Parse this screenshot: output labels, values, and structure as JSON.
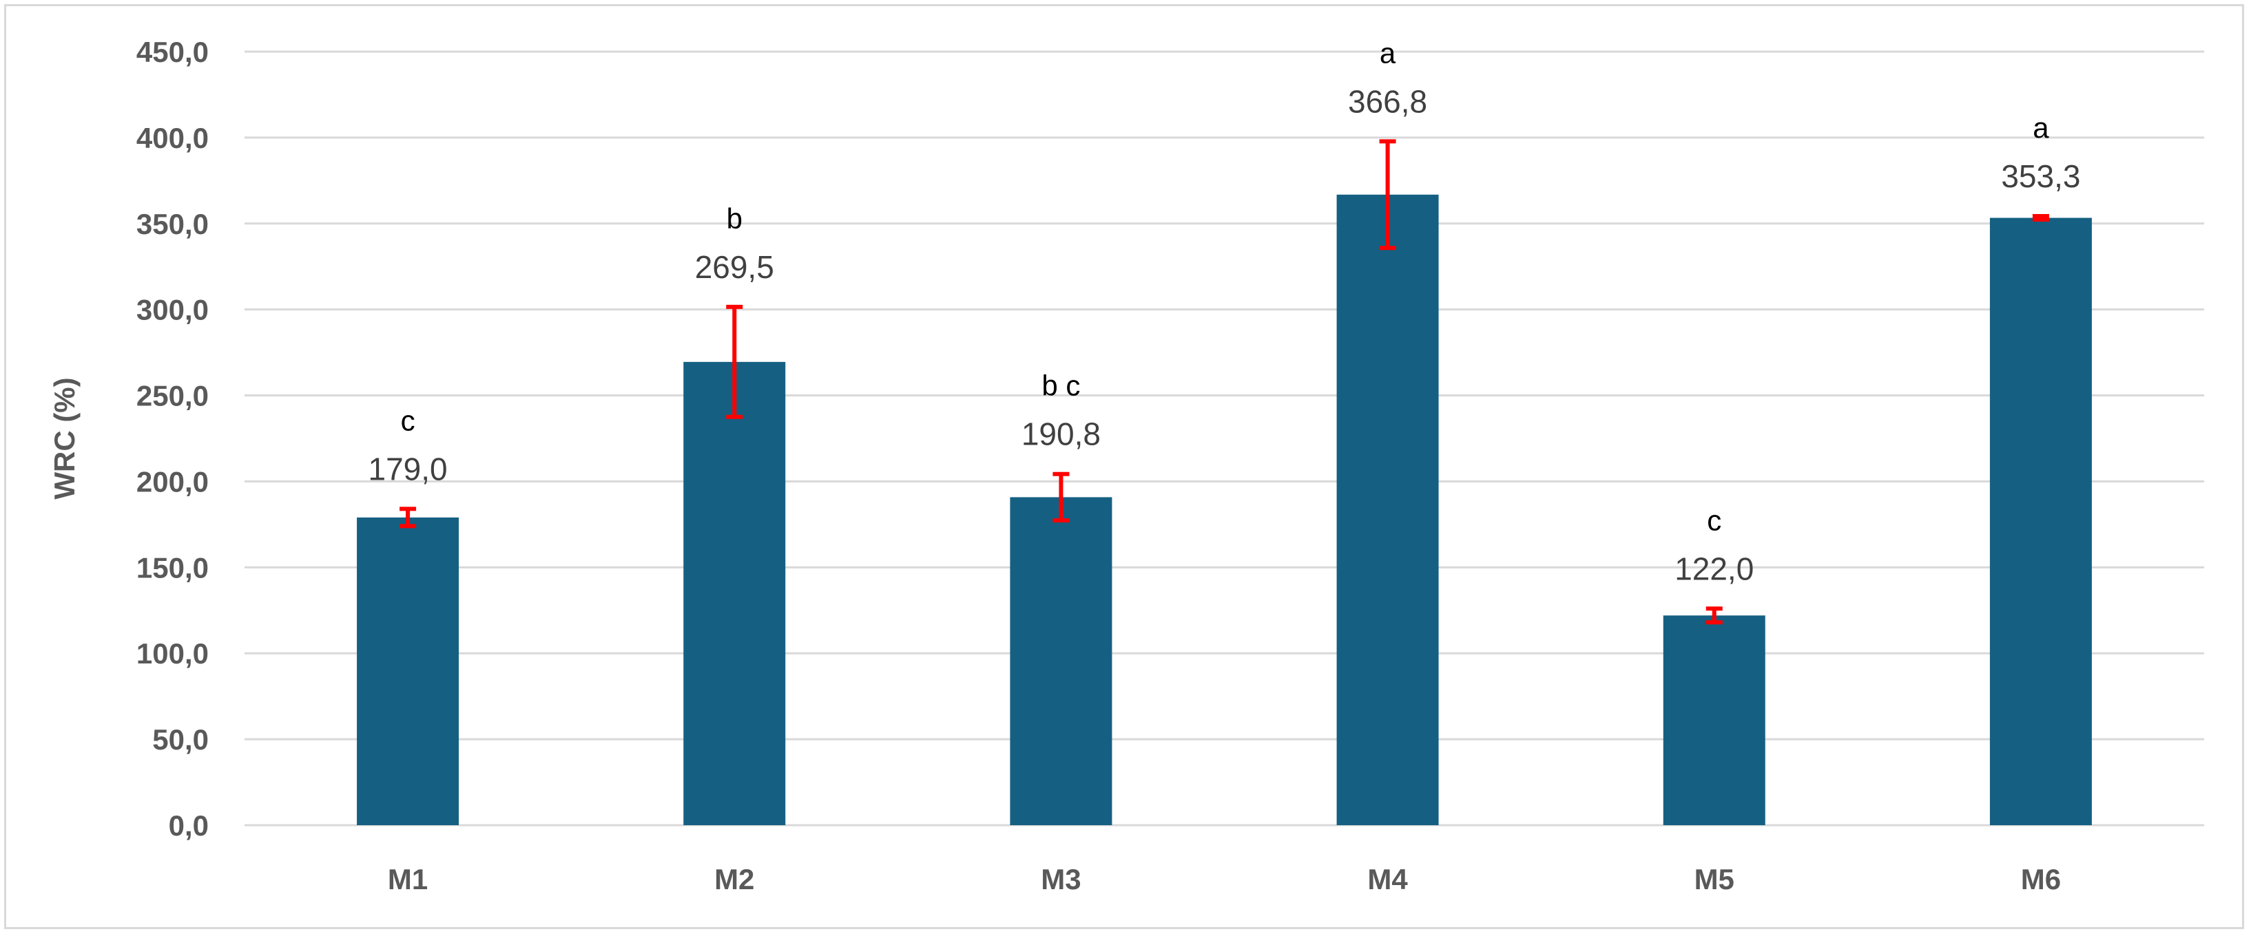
{
  "chart_data": {
    "type": "bar",
    "categories": [
      "M1",
      "M2",
      "M3",
      "M4",
      "M5",
      "M6"
    ],
    "values": [
      179.0,
      269.5,
      190.8,
      366.8,
      122.0,
      353.3
    ],
    "value_labels": [
      "179,0",
      "269,5",
      "190,8",
      "366,8",
      "122,0",
      "353,3"
    ],
    "error_bars": [
      5.0,
      32.0,
      13.5,
      31.0,
      4.0,
      1.0
    ],
    "significance_letters": [
      "c",
      "b",
      "b c",
      "a",
      "c",
      "a"
    ],
    "ylabel": "WRC (%)",
    "xlabel": "",
    "ylim": [
      0,
      450
    ],
    "yticks": [
      0,
      50,
      100,
      150,
      200,
      250,
      300,
      350,
      400,
      450
    ],
    "ytick_labels": [
      "0,0",
      "50,0",
      "100,0",
      "150,0",
      "200,0",
      "250,0",
      "300,0",
      "350,0",
      "400,0",
      "450,0"
    ],
    "grid": true,
    "legend": "none",
    "colors": {
      "bar": "#156082",
      "error_bar": "#ff0000",
      "grid": "#d9d9d9"
    }
  }
}
